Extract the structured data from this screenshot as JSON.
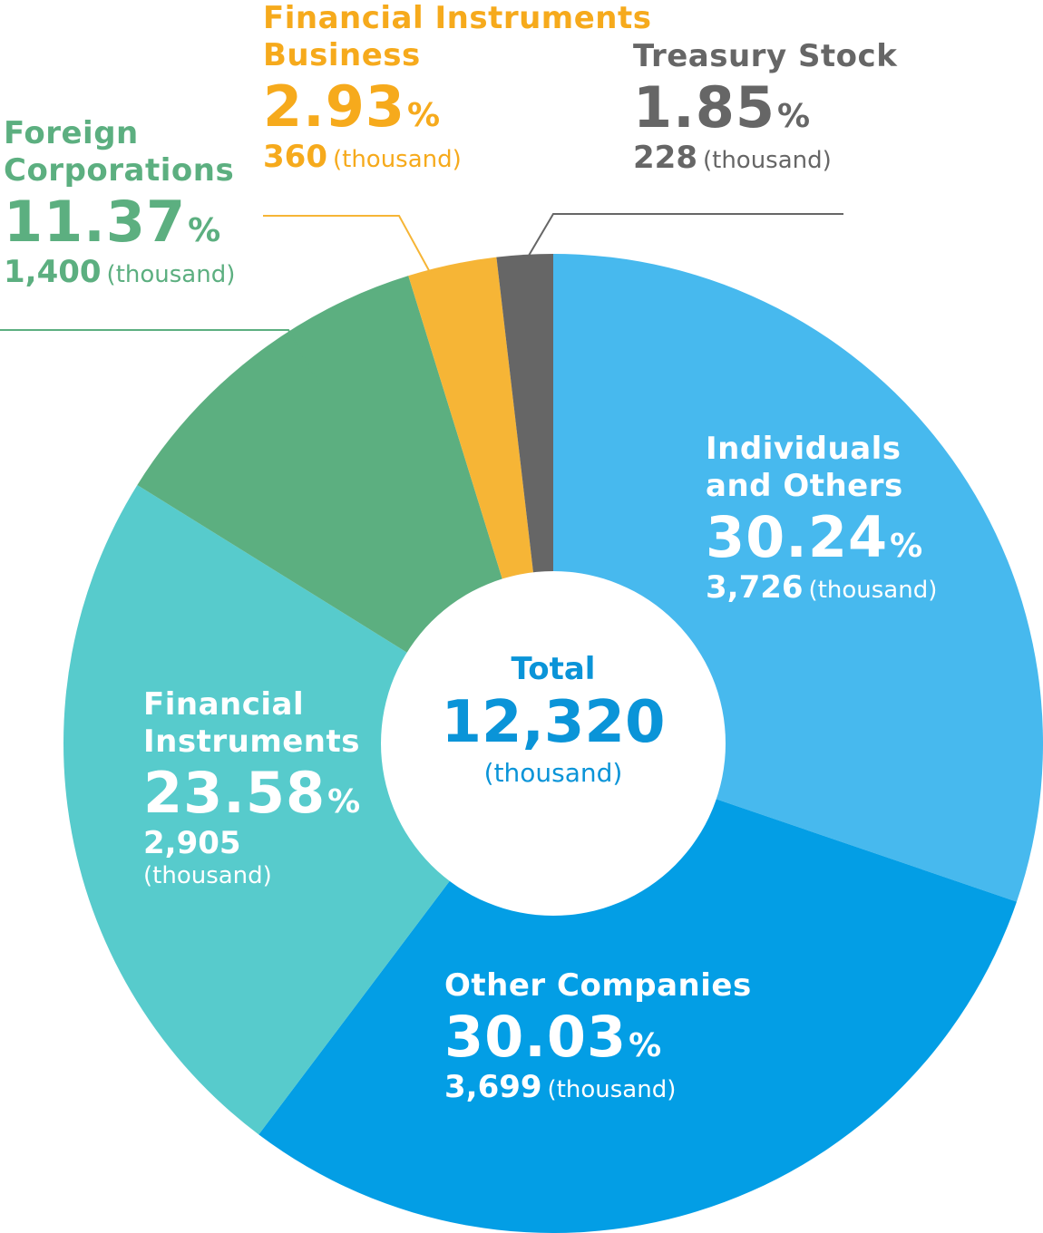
{
  "chart_data": {
    "type": "pie",
    "donut": true,
    "total": {
      "label": "Total",
      "value": "12,320",
      "unit": "(thousand)"
    },
    "slices": [
      {
        "key": "individuals",
        "name": "Individuals and Others",
        "name_lines": [
          "Individuals",
          "and Others"
        ],
        "percent": "30.24",
        "percent_sign": "%",
        "count": "3,726",
        "unit": "(thousand)",
        "value": 30.24,
        "color": "#47b9ee",
        "text_color": "#ffffff"
      },
      {
        "key": "other-companies",
        "name": "Other Companies",
        "name_lines": [
          "Other Companies"
        ],
        "percent": "30.03",
        "percent_sign": "%",
        "count": "3,699",
        "unit": "(thousand)",
        "value": 30.03,
        "color": "#039ee5",
        "text_color": "#ffffff"
      },
      {
        "key": "financial-instruments",
        "name": "Financial Instruments",
        "name_lines": [
          "Financial",
          "Instruments"
        ],
        "percent": "23.58",
        "percent_sign": "%",
        "count": "2,905",
        "unit": "(thousand)",
        "value": 23.58,
        "color": "#57cbcc",
        "text_color": "#ffffff"
      },
      {
        "key": "foreign-corporations",
        "name": "Foreign Corporations",
        "name_lines": [
          "Foreign",
          "Corporations"
        ],
        "percent": "11.37",
        "percent_sign": "%",
        "count": "1,400",
        "unit": "(thousand)",
        "value": 11.37,
        "color": "#5caf80",
        "text_color": "#5caf80"
      },
      {
        "key": "financial-instruments-business",
        "name": "Financial Instruments Business",
        "name_lines": [
          "Financial Instruments",
          "Business"
        ],
        "percent": "2.93",
        "percent_sign": "%",
        "count": "360",
        "unit": "(thousand)",
        "value": 2.93,
        "color": "#f6b536",
        "text_color": "#f6aa1c"
      },
      {
        "key": "treasury-stock",
        "name": "Treasury Stock",
        "name_lines": [
          "Treasury Stock"
        ],
        "percent": "1.85",
        "percent_sign": "%",
        "count": "228",
        "unit": "(thousand)",
        "value": 1.85,
        "color": "#666666",
        "text_color": "#666666"
      }
    ]
  }
}
